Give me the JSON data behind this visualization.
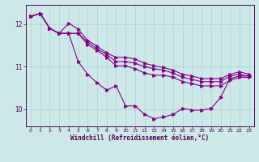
{
  "xlabel": "Windchill (Refroidissement éolien,°C)",
  "bg_color": "#cce8e8",
  "line_color": "#880088",
  "grid_color": "#aacccc",
  "xlim": [
    -0.5,
    23.5
  ],
  "ylim": [
    9.6,
    12.45
  ],
  "yticks": [
    10,
    11,
    12
  ],
  "xticks": [
    0,
    1,
    2,
    3,
    4,
    5,
    6,
    7,
    8,
    9,
    10,
    11,
    12,
    13,
    14,
    15,
    16,
    17,
    18,
    19,
    20,
    21,
    22,
    23
  ],
  "lines": [
    [
      12.18,
      12.25,
      11.9,
      11.78,
      11.78,
      11.12,
      10.82,
      10.62,
      10.45,
      10.55,
      10.08,
      10.08,
      9.88,
      9.78,
      9.82,
      9.88,
      10.02,
      9.98,
      9.98,
      10.02,
      10.28,
      10.72,
      10.78,
      10.78
    ],
    [
      12.18,
      12.25,
      11.9,
      11.78,
      12.02,
      11.88,
      11.62,
      11.48,
      11.32,
      11.22,
      11.22,
      11.18,
      11.08,
      11.02,
      10.98,
      10.92,
      10.82,
      10.78,
      10.72,
      10.72,
      10.72,
      10.82,
      10.88,
      10.82
    ],
    [
      12.18,
      12.25,
      11.9,
      11.78,
      11.78,
      11.78,
      11.58,
      11.42,
      11.28,
      11.12,
      11.12,
      11.08,
      11.0,
      10.95,
      10.92,
      10.85,
      10.75,
      10.7,
      10.65,
      10.65,
      10.65,
      10.78,
      10.82,
      10.78
    ],
    [
      12.18,
      12.25,
      11.9,
      11.78,
      11.78,
      11.78,
      11.52,
      11.38,
      11.22,
      11.02,
      11.02,
      10.95,
      10.85,
      10.8,
      10.8,
      10.75,
      10.65,
      10.6,
      10.55,
      10.55,
      10.55,
      10.68,
      10.75,
      10.75
    ]
  ]
}
